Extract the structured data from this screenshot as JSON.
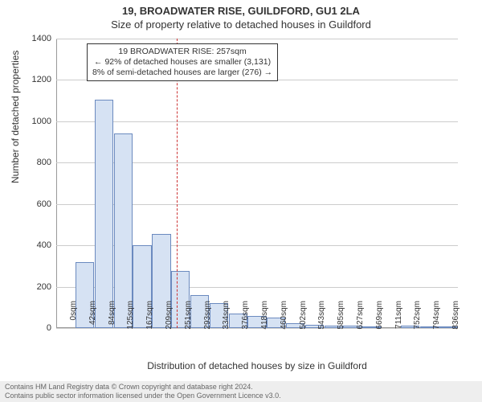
{
  "title": {
    "line1": "19, BROADWATER RISE, GUILDFORD, GU1 2LA",
    "line2": "Size of property relative to detached houses in Guildford"
  },
  "chart": {
    "type": "histogram",
    "background_color": "#ffffff",
    "grid_color": "#cccccc",
    "bar_fill_color": "#d6e2f3",
    "bar_border_color": "#6b8abf",
    "marker_line_color": "#cc3333",
    "text_color": "#333333",
    "ylabel": "Number of detached properties",
    "xlabel": "Distribution of detached houses by size in Guildford",
    "ylim": [
      0,
      1400
    ],
    "ytick_step": 200,
    "yticks": [
      0,
      200,
      400,
      600,
      800,
      1000,
      1200,
      1400
    ],
    "xtick_labels": [
      "0sqm",
      "42sqm",
      "84sqm",
      "125sqm",
      "167sqm",
      "209sqm",
      "251sqm",
      "293sqm",
      "334sqm",
      "376sqm",
      "418sqm",
      "460sqm",
      "502sqm",
      "543sqm",
      "585sqm",
      "627sqm",
      "669sqm",
      "711sqm",
      "752sqm",
      "794sqm",
      "836sqm"
    ],
    "values": [
      0,
      320,
      1105,
      940,
      400,
      455,
      275,
      160,
      120,
      70,
      60,
      50,
      25,
      15,
      10,
      10,
      8,
      0,
      12,
      6,
      5
    ],
    "marker_x_value": 257,
    "x_max_value": 857,
    "label_fontsize": 12,
    "tick_fontsize": 11
  },
  "annotation": {
    "line1": "19 BROADWATER RISE: 257sqm",
    "line2": "← 92% of detached houses are smaller (3,131)",
    "line3": "8% of semi-detached houses are larger (276) →"
  },
  "attribution": {
    "line1": "Contains HM Land Registry data © Crown copyright and database right 2024.",
    "line2": "Contains public sector information licensed under the Open Government Licence v3.0."
  }
}
